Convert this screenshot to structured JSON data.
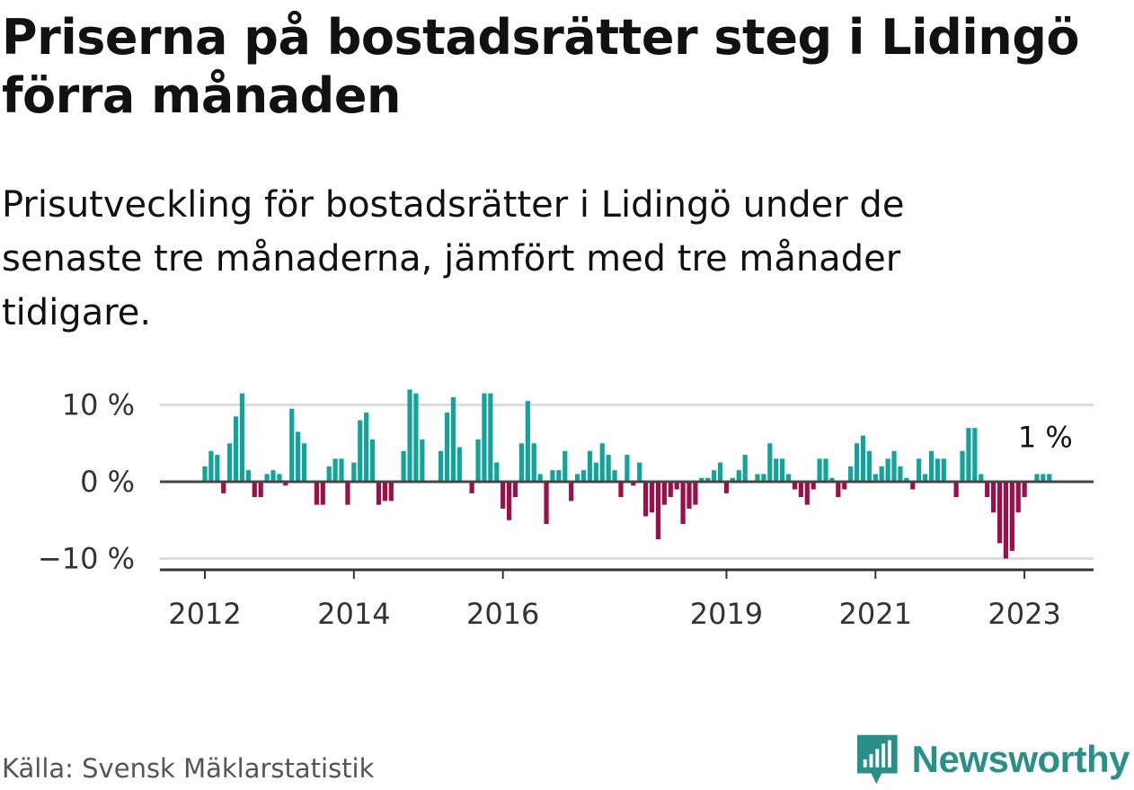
{
  "title": "Priserna på bostadsrätter steg i Lidingö förra månaden",
  "subtitle": "Prisutveckling för bostadsrätter i Lidingö under de senaste tre månaderna, jämfört med tre månader tidigare.",
  "source": "Källa: Svensk Mäklarstatistik",
  "brand": {
    "name": "Newsworthy",
    "icon": "newsworthy-logo-icon"
  },
  "colors": {
    "positive": "#12a39b",
    "negative": "#9c0f48",
    "grid": "#dddddd",
    "zero": "#444444",
    "brand": "#2a8f87"
  },
  "chart_data": {
    "type": "bar",
    "title": "Priserna på bostadsrätter steg i Lidingö förra månaden",
    "xlabel": "",
    "ylabel": "",
    "unit": "%",
    "ylim": [
      -11,
      10.5
    ],
    "y_ticks": [
      {
        "value": 10,
        "label": "10 %"
      },
      {
        "value": 0,
        "label": "0 %"
      },
      {
        "value": -10,
        "label": "−10 %"
      }
    ],
    "x_ticks": [
      {
        "year": 2012,
        "label": "2012"
      },
      {
        "year": 2014,
        "label": "2014"
      },
      {
        "year": 2016,
        "label": "2016"
      },
      {
        "year": 2019,
        "label": "2019"
      },
      {
        "year": 2021,
        "label": "2021"
      },
      {
        "year": 2023,
        "label": "2023"
      }
    ],
    "start": "2012-01",
    "end": "2023-04",
    "last_value_label": "1 %",
    "series": [
      {
        "name": "Prisutveckling",
        "values": [
          2,
          4,
          3.5,
          -1.5,
          5,
          8.5,
          11.5,
          1.5,
          -2,
          -2,
          1,
          1.5,
          1,
          -0.5,
          9.5,
          6.5,
          5,
          0,
          -3,
          -3,
          2,
          3,
          3,
          -3,
          2.5,
          8,
          9,
          5.5,
          -3,
          -2.5,
          -2.5,
          0,
          4,
          12,
          11.5,
          5.5,
          0,
          0,
          4,
          9,
          11,
          4.5,
          0,
          -1.5,
          5.5,
          11.5,
          11.5,
          2.5,
          -3.5,
          -5,
          -2,
          5,
          10.5,
          5,
          1,
          -5.5,
          1.5,
          1.5,
          4,
          -2.5,
          1,
          1.5,
          4,
          2.5,
          5,
          3.5,
          1.5,
          -2,
          3.5,
          -0.5,
          2.5,
          -4.5,
          -4,
          -7.5,
          -3,
          -2,
          -1,
          -5.5,
          -3.5,
          -3,
          0.5,
          0.5,
          1.5,
          2.5,
          -1.5,
          0.5,
          1.5,
          3.5,
          0,
          1,
          1,
          5,
          3,
          3,
          1,
          -1,
          -2,
          -3,
          -1,
          3,
          3,
          0.5,
          -2,
          -1,
          2,
          5,
          6,
          4,
          1,
          2,
          3,
          4,
          2,
          0.5,
          -1,
          3,
          1,
          4,
          3,
          3,
          0,
          -2,
          4,
          7,
          7,
          1,
          -2,
          -4,
          -8,
          -10,
          -9,
          -4,
          -2,
          0,
          1,
          1,
          1
        ]
      }
    ]
  }
}
